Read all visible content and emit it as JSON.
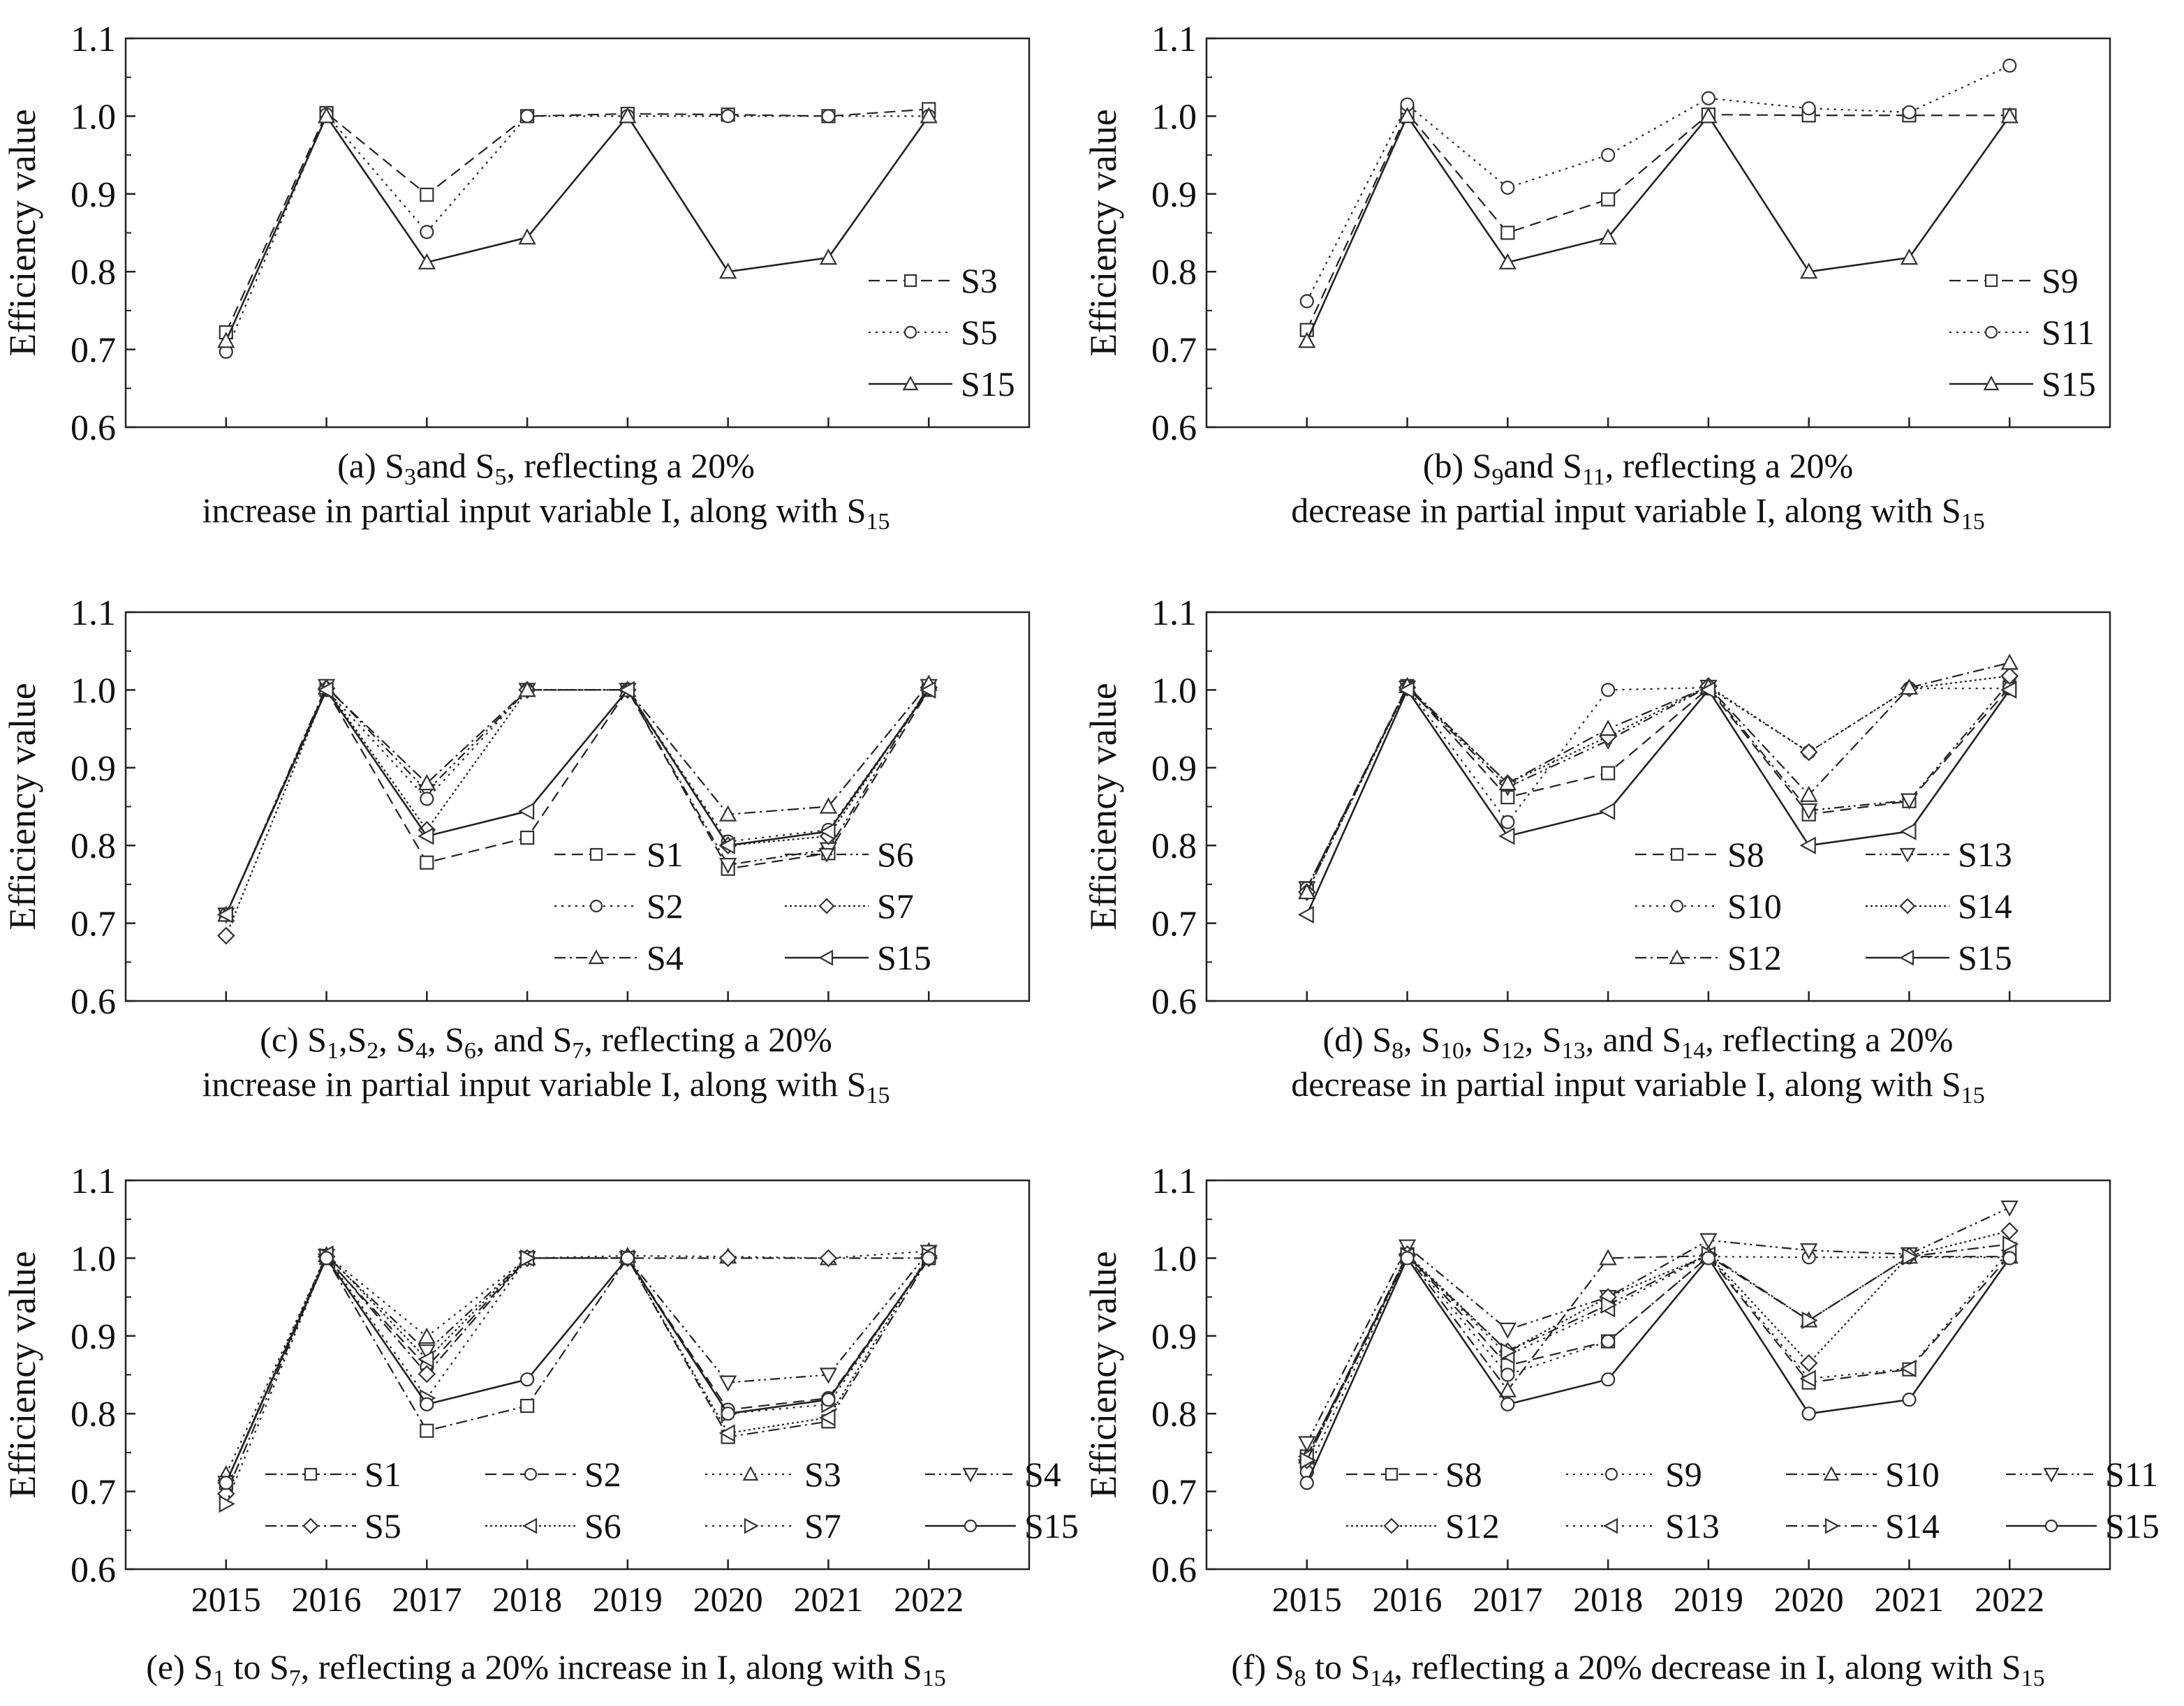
{
  "figure": {
    "y_label": "Efficiency value",
    "x_categories": [
      "2015",
      "2016",
      "2017",
      "2018",
      "2019",
      "2020",
      "2021",
      "2022"
    ],
    "y_ticks": [
      "0.6",
      "0.7",
      "0.8",
      "0.9",
      "1.0",
      "1.1"
    ]
  },
  "chart_data": [
    {
      "id": "a",
      "type": "line",
      "title": "(a) S3and S5, reflecting a 20% increase in partial input variable I, along with S15",
      "caption": {
        "line1": [
          {
            "t": "(a)  S"
          },
          {
            "s": "3"
          },
          {
            "t": "and S"
          },
          {
            "s": "5"
          },
          {
            "t": ", reflecting a 20%"
          }
        ],
        "line2": [
          {
            "t": "increase in partial input variable I, along with S"
          },
          {
            "s": "15"
          }
        ]
      },
      "xlabel": "",
      "ylabel": "Efficiency value",
      "ylim": [
        0.6,
        1.1
      ],
      "categories": [
        "2015",
        "2016",
        "2017",
        "2018",
        "2019",
        "2020",
        "2021",
        "2022"
      ],
      "show_x_ticklabels": false,
      "legend": {
        "position": "bottom-right",
        "columns": 1
      },
      "series": [
        {
          "name": "S3",
          "style": "dash",
          "marker": "square",
          "values": [
            0.722,
            1.004,
            0.899,
            1.0,
            1.003,
            1.002,
            1.0,
            1.009
          ]
        },
        {
          "name": "S5",
          "style": "dot",
          "marker": "circle",
          "values": [
            0.697,
            1.002,
            0.851,
            1.0,
            1.0,
            1.0,
            1.0,
            1.0
          ]
        },
        {
          "name": "S15",
          "style": "solid",
          "marker": "triangle-up",
          "values": [
            0.711,
            1.0,
            0.812,
            0.844,
            1.0,
            0.8,
            0.818,
            1.0
          ]
        }
      ]
    },
    {
      "id": "b",
      "type": "line",
      "title": "(b) S9and S11, reflecting a 20% decrease in partial input variable I, along with S15",
      "caption": {
        "line1": [
          {
            "t": "(b)        S"
          },
          {
            "s": "9"
          },
          {
            "t": "and S"
          },
          {
            "s": "11"
          },
          {
            "t": ", reflecting a 20%"
          }
        ],
        "line2": [
          {
            "t": "decrease in partial input variable I, along with S"
          },
          {
            "s": "15"
          }
        ]
      },
      "xlabel": "",
      "ylabel": "Efficiency value",
      "ylim": [
        0.6,
        1.1
      ],
      "categories": [
        "2015",
        "2016",
        "2017",
        "2018",
        "2019",
        "2020",
        "2021",
        "2022"
      ],
      "show_x_ticklabels": false,
      "legend": {
        "position": "bottom-right",
        "columns": 1
      },
      "series": [
        {
          "name": "S9",
          "style": "dash",
          "marker": "square",
          "values": [
            0.725,
            1.004,
            0.85,
            0.893,
            1.002,
            1.001,
            1.001,
            1.001
          ]
        },
        {
          "name": "S11",
          "style": "dot",
          "marker": "circle",
          "values": [
            0.762,
            1.015,
            0.908,
            0.95,
            1.023,
            1.01,
            1.005,
            1.065
          ]
        },
        {
          "name": "S15",
          "style": "solid",
          "marker": "triangle-up",
          "values": [
            0.711,
            1.0,
            0.812,
            0.844,
            1.0,
            0.8,
            0.818,
            1.0
          ]
        }
      ]
    },
    {
      "id": "c",
      "type": "line",
      "title": "(c) S1,S2, S4, S6, and S7, reflecting a 20% increase in partial input variable I, along with S15",
      "caption": {
        "line1": [
          {
            "t": "(c)  S"
          },
          {
            "s": "1"
          },
          {
            "t": ",S"
          },
          {
            "s": "2"
          },
          {
            "t": ", S"
          },
          {
            "s": "4"
          },
          {
            "t": ", S"
          },
          {
            "s": "6"
          },
          {
            "t": ", and S"
          },
          {
            "s": "7"
          },
          {
            "t": ", reflecting a 20%"
          }
        ],
        "line2": [
          {
            "t": "increase in partial input variable I, along with S"
          },
          {
            "s": "15"
          }
        ]
      },
      "xlabel": "",
      "ylabel": "Efficiency value",
      "ylim": [
        0.6,
        1.1
      ],
      "categories": [
        "2015",
        "2016",
        "2017",
        "2018",
        "2019",
        "2020",
        "2021",
        "2022"
      ],
      "show_x_ticklabels": false,
      "legend": {
        "position": "bottom-right",
        "columns": 2
      },
      "series": [
        {
          "name": "S1",
          "style": "dash",
          "marker": "square",
          "values": [
            0.711,
            1.0,
            0.778,
            0.81,
            1.0,
            0.77,
            0.79,
            1.0
          ]
        },
        {
          "name": "S6",
          "style": "dashdotdot",
          "marker": "triangle-down",
          "values": [
            0.711,
            1.005,
            0.87,
            1.0,
            1.0,
            0.775,
            0.795,
            1.005
          ]
        },
        {
          "name": "S2",
          "style": "dot",
          "marker": "circle",
          "values": [
            0.711,
            1.0,
            0.86,
            1.0,
            1.0,
            0.805,
            0.82,
            1.0
          ]
        },
        {
          "name": "S7",
          "style": "densedot",
          "marker": "diamond",
          "values": [
            0.684,
            1.002,
            0.82,
            1.0,
            1.0,
            0.8,
            0.812,
            1.003
          ]
        },
        {
          "name": "S4",
          "style": "dashdot",
          "marker": "triangle-up",
          "values": [
            0.711,
            1.003,
            0.88,
            1.0,
            1.0,
            0.84,
            0.85,
            1.008
          ]
        },
        {
          "name": "S15",
          "style": "solid",
          "marker": "triangle-left",
          "values": [
            0.711,
            1.0,
            0.812,
            0.844,
            1.0,
            0.8,
            0.818,
            1.0
          ]
        }
      ]
    },
    {
      "id": "d",
      "type": "line",
      "title": "(d) S8, S10, S12, S13, and S14, reflecting a 20% decrease in partial input variable I, along with S15",
      "caption": {
        "line1": [
          {
            "t": "(d) S"
          },
          {
            "s": "8"
          },
          {
            "t": ", S"
          },
          {
            "s": "10"
          },
          {
            "t": ", S"
          },
          {
            "s": "12"
          },
          {
            "t": ", S"
          },
          {
            "s": "13"
          },
          {
            "t": ", and S"
          },
          {
            "s": "14"
          },
          {
            "t": ", reflecting a 20%"
          }
        ],
        "line2": [
          {
            "t": "decrease in partial input variable I, along with S"
          },
          {
            "s": "15"
          }
        ]
      },
      "xlabel": "",
      "ylabel": "Efficiency value",
      "ylim": [
        0.6,
        1.1
      ],
      "categories": [
        "2015",
        "2016",
        "2017",
        "2018",
        "2019",
        "2020",
        "2021",
        "2022"
      ],
      "show_x_ticklabels": false,
      "legend": {
        "position": "bottom-right",
        "columns": 2
      },
      "series": [
        {
          "name": "S8",
          "style": "dash",
          "marker": "square",
          "values": [
            0.745,
            1.005,
            0.862,
            0.893,
            1.002,
            0.84,
            0.857,
            1.003
          ]
        },
        {
          "name": "S13",
          "style": "dashdotdot",
          "marker": "triangle-down",
          "values": [
            0.745,
            1.003,
            0.875,
            0.935,
            1.004,
            0.845,
            0.858,
            1.01
          ]
        },
        {
          "name": "S10",
          "style": "dot",
          "marker": "circle",
          "values": [
            0.745,
            1.003,
            0.83,
            1.0,
            1.003,
            0.92,
            1.002,
            1.002
          ]
        },
        {
          "name": "S14",
          "style": "densedot",
          "marker": "diamond",
          "values": [
            0.74,
            1.003,
            0.88,
            0.94,
            1.005,
            0.92,
            1.002,
            1.018
          ]
        },
        {
          "name": "S12",
          "style": "dashdot",
          "marker": "triangle-up",
          "values": [
            0.74,
            1.005,
            0.88,
            0.95,
            1.004,
            0.865,
            1.003,
            1.035
          ]
        },
        {
          "name": "S15",
          "style": "solid",
          "marker": "triangle-left",
          "values": [
            0.711,
            1.0,
            0.812,
            0.844,
            1.0,
            0.8,
            0.818,
            1.0
          ]
        }
      ]
    },
    {
      "id": "e",
      "type": "line",
      "title": "(e) S1 to S7, reflecting a 20% increase in I, along with S15",
      "caption": {
        "line1": [
          {
            "t": "(e) S"
          },
          {
            "s": "1"
          },
          {
            "t": " to S"
          },
          {
            "s": "7"
          },
          {
            "t": ", reflecting a 20% increase in I, along with S"
          },
          {
            "s": "15"
          }
        ]
      },
      "xlabel": "",
      "ylabel": "Efficiency value",
      "ylim": [
        0.6,
        1.1
      ],
      "categories": [
        "2015",
        "2016",
        "2017",
        "2018",
        "2019",
        "2020",
        "2021",
        "2022"
      ],
      "show_x_ticklabels": true,
      "legend": {
        "position": "bottom",
        "columns": 4
      },
      "series": [
        {
          "name": "S1",
          "style": "dashdot",
          "marker": "square",
          "values": [
            0.711,
            1.0,
            0.778,
            0.81,
            1.0,
            0.77,
            0.79,
            1.0
          ]
        },
        {
          "name": "S2",
          "style": "dash",
          "marker": "circle",
          "values": [
            0.711,
            1.0,
            0.86,
            1.0,
            1.0,
            0.805,
            0.82,
            1.0
          ]
        },
        {
          "name": "S3",
          "style": "dot",
          "marker": "triangle-up",
          "values": [
            0.722,
            1.004,
            0.899,
            1.0,
            1.003,
            1.002,
            1.0,
            1.009
          ]
        },
        {
          "name": "S4",
          "style": "dashdotdot",
          "marker": "triangle-down",
          "values": [
            0.711,
            1.003,
            0.88,
            1.0,
            1.0,
            0.84,
            0.85,
            1.008
          ]
        },
        {
          "name": "S5",
          "style": "dashdot",
          "marker": "diamond",
          "values": [
            0.697,
            1.002,
            0.851,
            1.0,
            1.0,
            1.0,
            1.0,
            1.0
          ]
        },
        {
          "name": "S6",
          "style": "densedot",
          "marker": "triangle-left",
          "values": [
            0.711,
            1.005,
            0.87,
            1.0,
            1.0,
            0.775,
            0.795,
            1.005
          ]
        },
        {
          "name": "S7",
          "style": "dot",
          "marker": "triangle-right",
          "values": [
            0.684,
            1.002,
            0.82,
            1.0,
            1.0,
            0.8,
            0.812,
            1.003
          ]
        },
        {
          "name": "S15",
          "style": "solid",
          "marker": "circle",
          "values": [
            0.711,
            1.0,
            0.812,
            0.844,
            1.0,
            0.8,
            0.818,
            1.0
          ]
        }
      ]
    },
    {
      "id": "f",
      "type": "line",
      "title": "(f) S8 to S14, reflecting a 20% decrease in I, along with S15",
      "caption": {
        "line1": [
          {
            "t": "(f) S"
          },
          {
            "s": "8"
          },
          {
            "t": " to S"
          },
          {
            "s": "14"
          },
          {
            "t": ", reflecting a 20% decrease in I, along with S"
          },
          {
            "s": "15"
          }
        ]
      },
      "xlabel": "",
      "ylabel": "Efficiency value",
      "ylim": [
        0.6,
        1.1
      ],
      "categories": [
        "2015",
        "2016",
        "2017",
        "2018",
        "2019",
        "2020",
        "2021",
        "2022"
      ],
      "show_x_ticklabels": true,
      "legend": {
        "position": "bottom",
        "columns": 4
      },
      "series": [
        {
          "name": "S8",
          "style": "dash",
          "marker": "square",
          "values": [
            0.745,
            1.005,
            0.862,
            0.893,
            1.002,
            0.84,
            0.857,
            1.003
          ]
        },
        {
          "name": "S9",
          "style": "dot",
          "marker": "circle",
          "values": [
            0.725,
            1.004,
            0.85,
            0.893,
            1.002,
            1.001,
            1.001,
            1.001
          ]
        },
        {
          "name": "S10",
          "style": "dashdot",
          "marker": "triangle-up",
          "values": [
            0.745,
            1.003,
            0.83,
            1.0,
            1.003,
            0.92,
            1.002,
            1.002
          ]
        },
        {
          "name": "S11",
          "style": "dashdotdot",
          "marker": "triangle-down",
          "values": [
            0.762,
            1.015,
            0.908,
            0.95,
            1.023,
            1.01,
            1.005,
            1.065
          ]
        },
        {
          "name": "S12",
          "style": "densedot",
          "marker": "diamond",
          "values": [
            0.74,
            1.005,
            0.88,
            0.95,
            1.004,
            0.865,
            1.003,
            1.035
          ]
        },
        {
          "name": "S13",
          "style": "dot",
          "marker": "triangle-left",
          "values": [
            0.745,
            1.003,
            0.875,
            0.935,
            1.004,
            0.845,
            0.858,
            1.01
          ]
        },
        {
          "name": "S14",
          "style": "dashdot",
          "marker": "triangle-right",
          "values": [
            0.74,
            1.003,
            0.88,
            0.94,
            1.005,
            0.92,
            1.002,
            1.018
          ]
        },
        {
          "name": "S15",
          "style": "solid",
          "marker": "circle",
          "values": [
            0.711,
            1.0,
            0.812,
            0.844,
            1.0,
            0.8,
            0.818,
            1.0
          ]
        }
      ]
    }
  ]
}
